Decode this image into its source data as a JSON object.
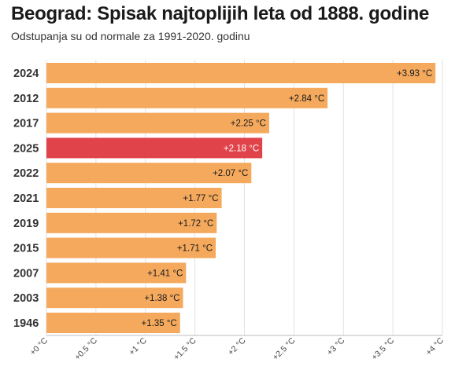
{
  "chart_data": {
    "type": "bar",
    "orientation": "horizontal",
    "title": "Beograd: Spisak najtoplijih leta od 1888. godine",
    "subtitle": "Odstupanja su od normale za 1991-2020. godinu",
    "categories": [
      "2024",
      "2012",
      "2017",
      "2025",
      "2022",
      "2021",
      "2019",
      "2015",
      "2007",
      "2003",
      "1946"
    ],
    "values": [
      3.93,
      2.84,
      2.25,
      2.18,
      2.07,
      1.77,
      1.72,
      1.71,
      1.41,
      1.38,
      1.35
    ],
    "value_labels": [
      "+3.93 °C",
      "+2.84 °C",
      "+2.25 °C",
      "+2.18 °C",
      "+2.07 °C",
      "+1.77 °C",
      "+1.72 °C",
      "+1.71 °C",
      "+1.41 °C",
      "+1.38 °C",
      "+1.35 °C"
    ],
    "highlight_category": "2025",
    "xlim": [
      0,
      4
    ],
    "xticks": [
      0,
      0.5,
      1,
      1.5,
      2,
      2.5,
      3,
      3.5,
      4
    ],
    "xtick_labels": [
      "+0 °C",
      "+0.5 °C",
      "+1 °C",
      "+1.5 °C",
      "+2 °C",
      "+2.5 °C",
      "+3 °C",
      "+3.5 °C",
      "+4 °C"
    ],
    "grid": true,
    "colors": {
      "bar": "#f4a95d",
      "highlight": "#e0434a",
      "grid": "#e2e2e2"
    }
  }
}
